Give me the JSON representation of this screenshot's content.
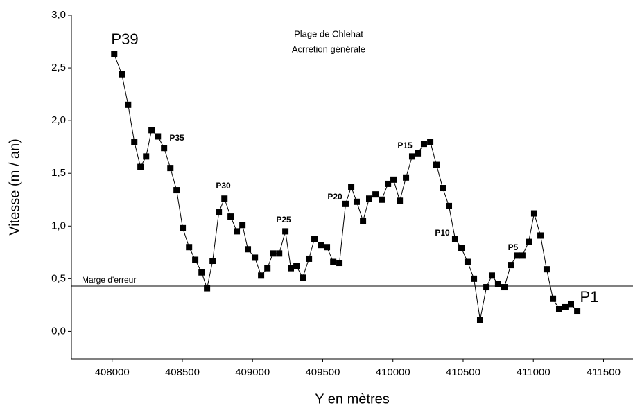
{
  "chart_data": {
    "type": "line",
    "title": "Plage de Chlehat",
    "subtitle": "Acrretion générale",
    "x_label": "Y en mètres",
    "y_label": "Vitesse (m / an)",
    "x": [
      408015,
      408069,
      408114,
      408158,
      408202,
      408242,
      408281,
      408326,
      408370,
      408415,
      408459,
      408503,
      408548,
      408592,
      408637,
      408676,
      408716,
      408760,
      408800,
      408844,
      408888,
      408928,
      408967,
      409017,
      409061,
      409106,
      409145,
      409190,
      409234,
      409273,
      409313,
      409357,
      409402,
      409441,
      409486,
      409530,
      409575,
      409619,
      409663,
      409703,
      409742,
      409787,
      409831,
      409876,
      409920,
      409965,
      410004,
      410049,
      410093,
      410137,
      410177,
      410221,
      410266,
      410310,
      410355,
      410399,
      410443,
      410488,
      410532,
      410577,
      410621,
      410666,
      410705,
      410749,
      410794,
      410839,
      410883,
      410922,
      410967,
      411006,
      411051,
      411095,
      411140,
      411184,
      411228,
      411268,
      411313
    ],
    "series": [
      {
        "color": "#000000",
        "values": [
          2.63,
          2.44,
          2.15,
          1.8,
          1.56,
          1.66,
          1.91,
          1.85,
          1.74,
          1.55,
          1.34,
          0.98,
          0.8,
          0.68,
          0.56,
          0.41,
          0.67,
          1.13,
          1.26,
          1.09,
          0.95,
          1.01,
          0.78,
          0.7,
          0.53,
          0.6,
          0.74,
          0.74,
          0.95,
          0.6,
          0.62,
          0.51,
          0.69,
          0.88,
          0.82,
          0.8,
          0.66,
          0.65,
          1.21,
          1.37,
          1.23,
          1.05,
          1.26,
          1.3,
          1.25,
          1.4,
          1.44,
          1.24,
          1.46,
          1.66,
          1.69,
          1.78,
          1.8,
          1.58,
          1.36,
          1.19,
          0.88,
          0.79,
          0.66,
          0.5,
          0.11,
          0.42,
          0.53,
          0.45,
          0.42,
          0.63,
          0.72,
          0.72,
          0.85,
          1.12,
          0.91,
          0.59,
          0.31,
          0.21,
          0.23,
          0.26,
          0.19
        ]
      }
    ],
    "reference_line": {
      "label": "Marge d'erreur",
      "value": 0.43
    },
    "annotations": [
      "P39",
      "P35",
      "P30",
      "P25",
      "P20",
      "P15",
      "P10",
      "P5",
      "P1"
    ],
    "xlim": [
      407710,
      411710
    ],
    "ylim": [
      -0.26,
      3.0
    ],
    "xticks": [
      408000,
      408500,
      409000,
      409500,
      410000,
      410500,
      411000,
      411500
    ],
    "yticks": [
      {
        "value": 0,
        "label": "0,0"
      },
      {
        "value": 0.5,
        "label": "0,5"
      },
      {
        "value": 1,
        "label": "1,0"
      },
      {
        "value": 1.5,
        "label": "1,5"
      },
      {
        "value": 2,
        "label": "2,0"
      },
      {
        "value": 2.5,
        "label": "2,5"
      },
      {
        "value": 3,
        "label": "3,0"
      }
    ]
  }
}
